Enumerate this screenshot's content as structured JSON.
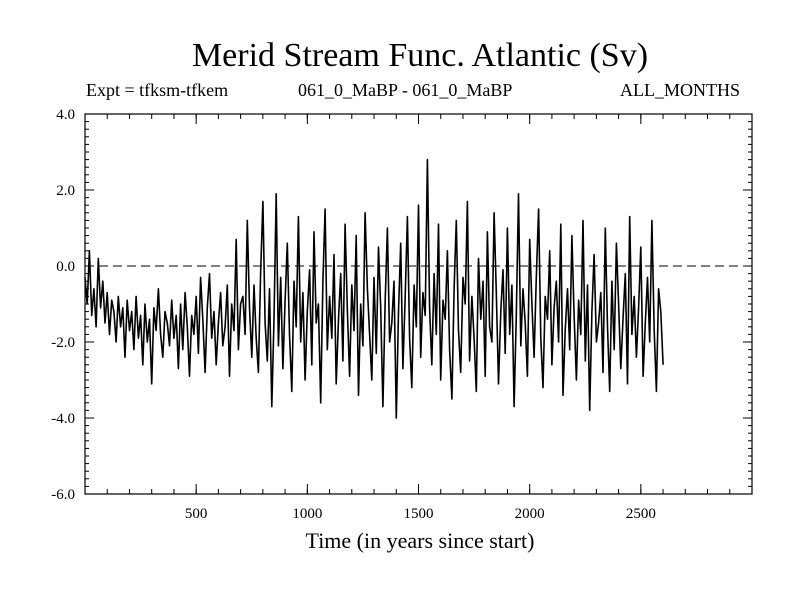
{
  "chart_data": {
    "type": "line",
    "title": "Merid Stream Func. Atlantic (Sv)",
    "subtitle_left": "Expt = tfksm-tfkem",
    "subtitle_center": "061_0_MaBP - 061_0_MaBP",
    "subtitle_right": "ALL_MONTHS",
    "xlabel": "Time (in years since start)",
    "ylabel": "",
    "xlim": [
      0,
      3000
    ],
    "ylim": [
      -6,
      4
    ],
    "x_ticks": [
      500,
      1000,
      1500,
      2000,
      2500
    ],
    "x_tick_labels": [
      "500",
      "1000",
      "1500",
      "2000",
      "2500"
    ],
    "y_ticks": [
      -6,
      -4,
      -2,
      0,
      2,
      4
    ],
    "y_tick_labels": [
      "-6.0",
      "-4.0",
      "-2.0",
      "0.0",
      "2.0",
      "4.0"
    ],
    "reference_line": 0,
    "series": [
      {
        "name": "Merid Stream Func. Atlantic",
        "sample_interval_years": 10,
        "x_start": 0,
        "values": [
          -0.3,
          -1.0,
          0.4,
          -1.3,
          -0.6,
          -1.6,
          0.2,
          -1.1,
          -0.4,
          -1.5,
          -0.7,
          -1.8,
          -0.9,
          -1.2,
          -2.0,
          -0.8,
          -1.6,
          -1.1,
          -2.4,
          -0.9,
          -1.7,
          -1.2,
          -2.2,
          -0.8,
          -1.9,
          -1.3,
          -2.6,
          -1.0,
          -2.0,
          -1.4,
          -3.1,
          -1.1,
          -1.7,
          -0.6,
          -1.8,
          -2.4,
          -1.2,
          -1.5,
          -2.1,
          -0.9,
          -1.9,
          -1.3,
          -2.7,
          -1.0,
          -2.2,
          -0.7,
          -1.6,
          -2.9,
          -1.3,
          -1.8,
          -0.8,
          -2.3,
          -0.3,
          -1.4,
          -2.8,
          -1.1,
          -0.2,
          -1.9,
          -1.2,
          -2.6,
          -1.5,
          -0.7,
          -2.1,
          -1.6,
          -0.5,
          -2.9,
          -1.0,
          -1.7,
          0.7,
          -2.2,
          -1.0,
          -0.8,
          -1.8,
          1.2,
          -1.1,
          -2.4,
          -0.5,
          -1.9,
          -2.8,
          -0.2,
          1.7,
          -1.5,
          -2.5,
          -0.6,
          -3.7,
          -1.4,
          1.9,
          -2.1,
          -0.3,
          -2.7,
          -0.9,
          0.6,
          -1.8,
          -3.3,
          -0.4,
          -1.6,
          1.3,
          -2.0,
          -0.7,
          -3.0,
          -1.2,
          -0.1,
          -2.6,
          0.9,
          -1.5,
          -1.0,
          -3.6,
          -0.4,
          1.5,
          -2.2,
          -0.8,
          -1.9,
          0.3,
          -3.1,
          -1.4,
          -0.2,
          -2.5,
          1.1,
          -1.2,
          -2.9,
          -0.5,
          -1.7,
          0.8,
          -3.4,
          -1.0,
          -2.1,
          1.4,
          -0.6,
          -1.8,
          -3.0,
          -0.3,
          -2.3,
          0.5,
          -1.1,
          -3.7,
          -0.9,
          1.0,
          -2.0,
          -1.5,
          -0.4,
          -4.0,
          -1.2,
          0.6,
          -2.7,
          -0.8,
          1.3,
          -1.9,
          -3.2,
          -0.5,
          -1.6,
          1.6,
          -2.4,
          -0.7,
          -1.3,
          2.8,
          -1.1,
          -2.6,
          -0.2,
          -1.8,
          1.1,
          -3.0,
          -0.9,
          -1.4,
          0.4,
          -2.2,
          -3.5,
          -0.6,
          1.2,
          -1.7,
          -2.8,
          -0.3,
          -1.0,
          1.7,
          -2.5,
          -0.8,
          -1.9,
          -3.3,
          0.2,
          -1.4,
          -0.4,
          -2.9,
          0.9,
          -1.6,
          -2.0,
          1.4,
          -0.7,
          -3.1,
          -1.2,
          -0.1,
          -2.3,
          1.0,
          -1.8,
          -0.5,
          -3.7,
          -1.3,
          1.9,
          -2.1,
          -0.6,
          -1.5,
          -2.9,
          0.7,
          -1.0,
          -2.4,
          -0.3,
          1.5,
          -1.9,
          -3.2,
          -0.8,
          -1.4,
          0.4,
          -2.6,
          -1.1,
          -0.4,
          -2.0,
          1.1,
          -3.4,
          -1.7,
          -0.6,
          -2.2,
          0.8,
          -1.3,
          -3.0,
          -0.9,
          -1.8,
          1.2,
          -2.5,
          -0.5,
          -3.8,
          -1.2,
          0.3,
          -2.0,
          -1.5,
          -0.7,
          -2.8,
          1.0,
          -1.6,
          -3.3,
          -0.4,
          -2.2,
          0.6,
          -1.0,
          -2.7,
          -1.4,
          -0.2,
          -3.1,
          1.3,
          -1.8,
          -0.8,
          -2.4,
          -1.1,
          0.5,
          -2.9,
          -1.5,
          -0.3,
          -2.0,
          1.2,
          -1.7,
          -3.3,
          -0.6,
          -1.2,
          -2.6
        ]
      }
    ]
  }
}
